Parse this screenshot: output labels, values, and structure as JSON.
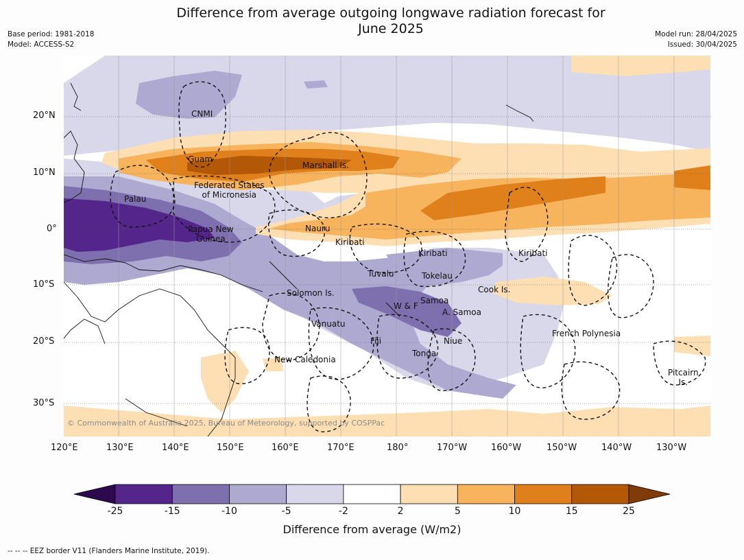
{
  "title_line1": "Difference from average outgoing longwave radiation forecast for",
  "title_line2": "June 2025",
  "meta_left": {
    "base_period": "Base period: 1981-2018",
    "model": "Model: ACCESS-S2"
  },
  "meta_right": {
    "model_run": "Model run: 28/04/2025",
    "issued": "Issued: 30/04/2025"
  },
  "lat_labels": [
    "20°N",
    "10°N",
    "0°",
    "10°S",
    "20°S",
    "30°S"
  ],
  "lon_labels": [
    "120°E",
    "130°E",
    "140°E",
    "150°E",
    "160°E",
    "170°E",
    "180°",
    "170°W",
    "160°W",
    "150°W",
    "140°W",
    "130°W"
  ],
  "places": {
    "cnmi": "CNMI",
    "guam": "Guam",
    "marshall": "Marshall Is.",
    "fsm_1": "Federated States",
    "fsm_2": "of Micronesia",
    "palau": "Palau",
    "png_1": "Papua New",
    "png_2": "Guinea",
    "nauru": "Nauru",
    "kiribati_w": "Kiribati",
    "kiribati_c": "Kiribati",
    "kiribati_e": "Kiribati",
    "tuvalu": "Tuvalu",
    "tokelau": "Tokelau",
    "cook": "Cook Is.",
    "solomon": "Solomon Is.",
    "samoa": "Samoa",
    "wf": "W & F",
    "asamoa": "A. Samoa",
    "vanuatu": "Vanuatu",
    "fiji": "Fiji",
    "niue": "Niue",
    "tonga": "Tonga",
    "french_polynesia": "French Polynesia",
    "pitcairn_1": "Pitcairn",
    "pitcairn_2": "Is.",
    "new_caledonia": "New Caledonia"
  },
  "copyright": "© Commonwealth of Australia 2025, Bureau of Meteorology, supported by COSPPac",
  "colorbar": {
    "ticks": [
      "-25",
      "-15",
      "-10",
      "-5",
      "-2",
      "2",
      "5",
      "10",
      "15",
      "25"
    ],
    "colors": [
      "#2d0a4e",
      "#54258a",
      "#7e6fae",
      "#ada9d1",
      "#d8d8ea",
      "#ffffff",
      "#fddfb3",
      "#f8b45c",
      "#e0801b",
      "#b35806",
      "#7f3b08"
    ],
    "title": "Difference from average (W/m2)"
  },
  "footnote": "-- -- -- EEZ border V11 (Flanders Marine Institute, 2019)."
}
